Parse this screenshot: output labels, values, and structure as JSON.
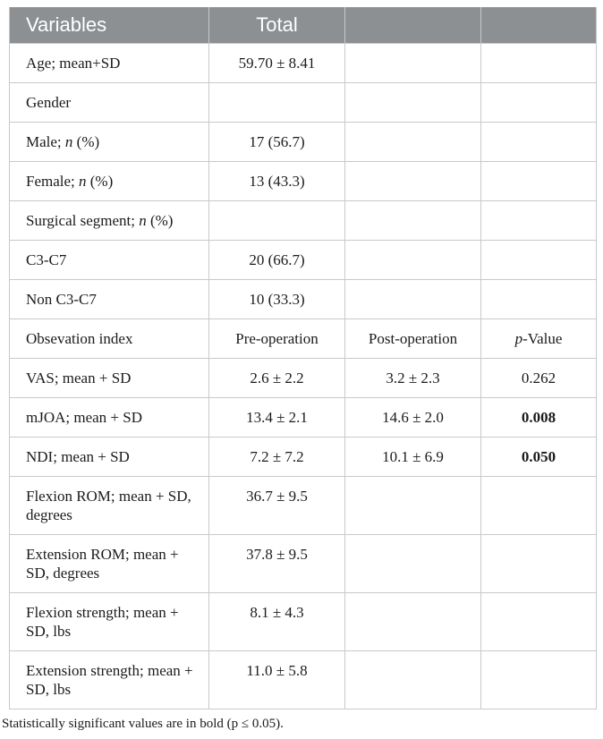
{
  "colors": {
    "header_bg": "#8c9093",
    "border": "#c7c9cb",
    "header_text": "#ffffff",
    "body_text": "#1b1b1b",
    "significant_style": "bold"
  },
  "table": {
    "header": [
      "Variables",
      "Total",
      "",
      ""
    ],
    "rows": [
      {
        "cells": [
          [
            {
              "t": "Age; mean+SD"
            }
          ],
          [
            {
              "t": "59.70 ± 8.41"
            }
          ],
          [],
          []
        ]
      },
      {
        "cells": [
          [
            {
              "t": "Gender"
            }
          ],
          [],
          [],
          []
        ]
      },
      {
        "cells": [
          [
            {
              "t": "Male; "
            },
            {
              "t": "n",
              "i": true
            },
            {
              "t": " (%)"
            }
          ],
          [
            {
              "t": "17 (56.7)"
            }
          ],
          [],
          []
        ]
      },
      {
        "cells": [
          [
            {
              "t": "Female; "
            },
            {
              "t": "n",
              "i": true
            },
            {
              "t": " (%)"
            }
          ],
          [
            {
              "t": "13 (43.3)"
            }
          ],
          [],
          []
        ]
      },
      {
        "cells": [
          [
            {
              "t": "Surgical segment; "
            },
            {
              "t": "n",
              "i": true
            },
            {
              "t": " (%)"
            }
          ],
          [],
          [],
          []
        ]
      },
      {
        "cells": [
          [
            {
              "t": "C3-C7"
            }
          ],
          [
            {
              "t": "20 (66.7)"
            }
          ],
          [],
          []
        ]
      },
      {
        "cells": [
          [
            {
              "t": "Non C3-C7"
            }
          ],
          [
            {
              "t": "10 (33.3)"
            }
          ],
          [],
          []
        ]
      },
      {
        "cells": [
          [
            {
              "t": "Obsevation index"
            }
          ],
          [
            {
              "t": "Pre-operation"
            }
          ],
          [
            {
              "t": "Post-operation"
            }
          ],
          [
            {
              "t": "p",
              "i": true
            },
            {
              "t": "-Value"
            }
          ]
        ]
      },
      {
        "cells": [
          [
            {
              "t": "VAS; mean + SD"
            }
          ],
          [
            {
              "t": "2.6 ± 2.2"
            }
          ],
          [
            {
              "t": "3.2 ± 2.3"
            }
          ],
          [
            {
              "t": "0.262"
            }
          ]
        ]
      },
      {
        "cells": [
          [
            {
              "t": "mJOA; mean + SD"
            }
          ],
          [
            {
              "t": "13.4 ± 2.1"
            }
          ],
          [
            {
              "t": "14.6 ± 2.0"
            }
          ],
          [
            {
              "t": "0.008",
              "b": true
            }
          ]
        ]
      },
      {
        "cells": [
          [
            {
              "t": "NDI; mean + SD"
            }
          ],
          [
            {
              "t": "7.2 ± 7.2"
            }
          ],
          [
            {
              "t": "10.1 ± 6.9"
            }
          ],
          [
            {
              "t": "0.050",
              "b": true
            }
          ]
        ]
      },
      {
        "cells": [
          [
            {
              "t": "Flexion ROM; mean + SD, degrees"
            }
          ],
          [
            {
              "t": "36.7 ± 9.5"
            }
          ],
          [],
          []
        ]
      },
      {
        "cells": [
          [
            {
              "t": "Extension ROM; mean + SD, degrees"
            }
          ],
          [
            {
              "t": "37.8 ± 9.5"
            }
          ],
          [],
          []
        ]
      },
      {
        "cells": [
          [
            {
              "t": "Flexion strength; mean + SD, lbs"
            }
          ],
          [
            {
              "t": "8.1 ± 4.3"
            }
          ],
          [],
          []
        ]
      },
      {
        "cells": [
          [
            {
              "t": "Extension strength; mean + SD, lbs"
            }
          ],
          [
            {
              "t": "11.0 ± 5.8"
            }
          ],
          [],
          []
        ]
      }
    ]
  },
  "footnote": "Statistically significant values are in bold (p ≤ 0.05)."
}
